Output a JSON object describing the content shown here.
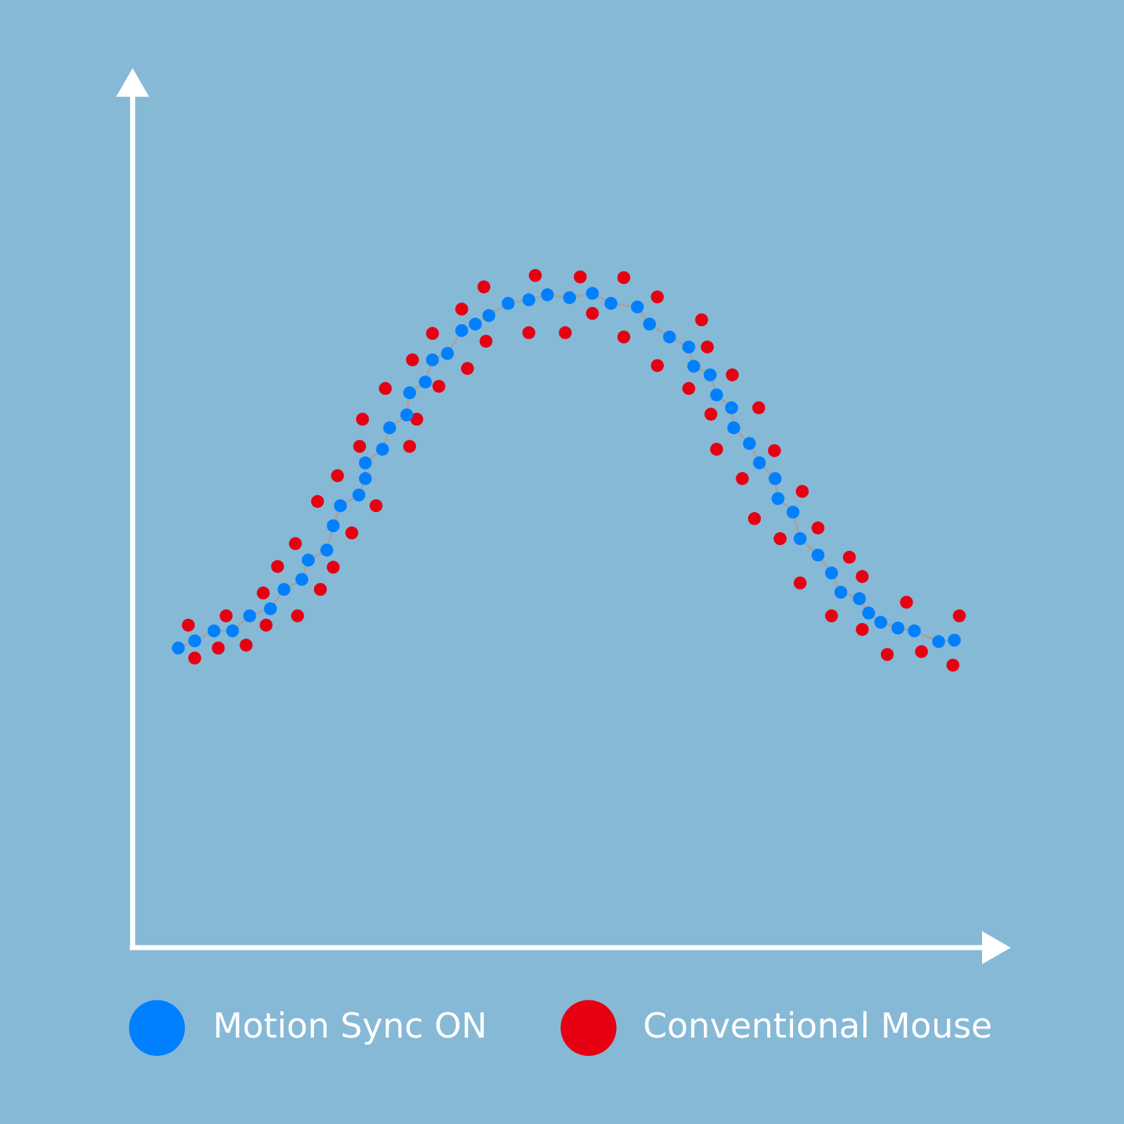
{
  "chart_data": {
    "type": "scatter",
    "xlim": [
      0,
      1230
    ],
    "ylim": [
      0,
      1230
    ],
    "legend": "bottom",
    "series": [
      {
        "name": "Motion Sync ON",
        "color": "#0080ff",
        "line_color": "#a3a3a3",
        "x": [
          64,
          87,
          114,
          140,
          164,
          193,
          212,
          237,
          246,
          272,
          281,
          291,
          317,
          326,
          326,
          350,
          360,
          384,
          388,
          410,
          420,
          441,
          461,
          480,
          499,
          526,
          555,
          581,
          612,
          644,
          670,
          707,
          724,
          752,
          779,
          786,
          809,
          818,
          839,
          842,
          864,
          878,
          900,
          904,
          925,
          935,
          960,
          979,
          992,
          1018,
          1031,
          1048,
          1072,
          1095,
          1129,
          1151
        ],
        "values": [
          419,
          429,
          443,
          443,
          464,
          474,
          501,
          515,
          542,
          556,
          590,
          618,
          633,
          656,
          678,
          697,
          727,
          745,
          776,
          791,
          822,
          831,
          863,
          872,
          884,
          901,
          906,
          913,
          909,
          915,
          901,
          896,
          872,
          854,
          840,
          813,
          801,
          773,
          755,
          727,
          705,
          678,
          656,
          628,
          609,
          572,
          549,
          524,
          497,
          488,
          468,
          455,
          447,
          443,
          428,
          430
        ]
      },
      {
        "name": "Conventional Mouse",
        "color": "#e60012",
        "x": [
          78,
          87,
          120,
          131,
          159,
          183,
          187,
          203,
          228,
          231,
          259,
          263,
          281,
          287,
          307,
          318,
          322,
          341,
          354,
          388,
          392,
          398,
          420,
          429,
          461,
          469,
          492,
          495,
          555,
          564,
          606,
          627,
          644,
          688,
          688,
          735,
          735,
          779,
          797,
          805,
          810,
          818,
          840,
          854,
          871,
          877,
          899,
          907,
          935,
          938,
          960,
          979,
          1004,
          1022,
          1022,
          1057,
          1084,
          1105,
          1149,
          1158
        ],
        "values": [
          451,
          405,
          419,
          464,
          423,
          496,
          451,
          533,
          565,
          464,
          624,
          501,
          532,
          660,
          580,
          701,
          739,
          618,
          782,
          701,
          822,
          739,
          859,
          785,
          893,
          810,
          924,
          848,
          860,
          940,
          860,
          938,
          887,
          937,
          854,
          910,
          814,
          782,
          878,
          840,
          746,
          697,
          801,
          656,
          600,
          755,
          695,
          572,
          510,
          638,
          587,
          464,
          546,
          519,
          445,
          410,
          483,
          414,
          395,
          464
        ]
      }
    ]
  }
}
